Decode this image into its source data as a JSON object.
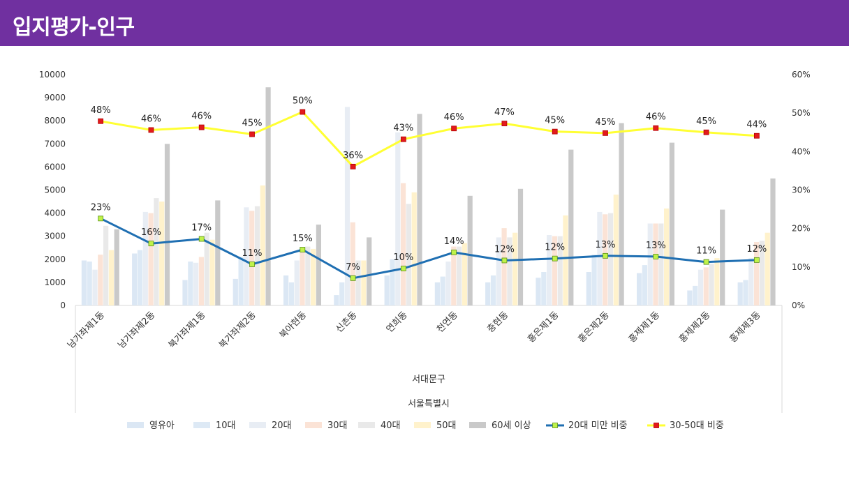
{
  "page": {
    "title": "입지평가-인구"
  },
  "colors": {
    "header_bg": "#7030a0",
    "infant": "#dbe7f4",
    "teens": "#dde9f5",
    "twenties": "#e8edf4",
    "thirties": "#fbe3d6",
    "forties": "#e9e9e9",
    "fifties": "#fff2cc",
    "sixty_plus": "#c9c9c9",
    "under20_line": "#1f6fb2",
    "under20_marker": "#bff24a",
    "age30_50_line": "#ffff33",
    "age30_50_marker": "#e31a1c"
  },
  "chart_data": {
    "type": "bar",
    "categories": [
      "남가좌제1동",
      "남가좌제2동",
      "북가좌제1동",
      "북가좌제2동",
      "북아현동",
      "신촌동",
      "연희동",
      "천연동",
      "충현동",
      "홍은제1동",
      "홍은제2동",
      "홍제제1동",
      "홍제제2동",
      "홍제제3동"
    ],
    "x_group_labels": [
      "서대문구",
      "서울특별시"
    ],
    "ylim": [
      0,
      10000
    ],
    "y_ticks": [
      "0",
      "1000",
      "2000",
      "3000",
      "4000",
      "5000",
      "6000",
      "7000",
      "8000",
      "9000",
      "10000"
    ],
    "y2lim": [
      0,
      0.6
    ],
    "y2_ticks": [
      "0%",
      "10%",
      "20%",
      "30%",
      "40%",
      "50%",
      "60%"
    ],
    "series": [
      {
        "name": "영유아",
        "type": "bar",
        "values": [
          1950,
          2250,
          1100,
          1150,
          1300,
          450,
          1300,
          1000,
          1000,
          1200,
          1450,
          1400,
          650,
          1000
        ]
      },
      {
        "name": "10대",
        "type": "bar",
        "values": [
          1900,
          2400,
          1900,
          2100,
          1000,
          1000,
          2000,
          1250,
          1300,
          1450,
          2200,
          1750,
          850,
          1100
        ]
      },
      {
        "name": "20대",
        "type": "bar",
        "values": [
          1550,
          4050,
          1850,
          4250,
          1950,
          8600,
          7500,
          1900,
          2950,
          3050,
          4050,
          3550,
          1550,
          2050
        ]
      },
      {
        "name": "30대",
        "type": "bar",
        "values": [
          2200,
          4000,
          2100,
          4100,
          2350,
          3600,
          5300,
          2550,
          3350,
          3000,
          3950,
          3550,
          1650,
          2750
        ]
      },
      {
        "name": "40대",
        "type": "bar",
        "values": [
          3450,
          4650,
          3150,
          4300,
          2550,
          1950,
          4400,
          2550,
          2950,
          3000,
          4000,
          3550,
          1800,
          2800
        ]
      },
      {
        "name": "50대",
        "type": "bar",
        "values": [
          2400,
          4500,
          2850,
          5200,
          2450,
          1950,
          4900,
          2700,
          3150,
          3900,
          4800,
          4200,
          2050,
          3150
        ]
      },
      {
        "name": "60세 이상",
        "type": "bar",
        "values": [
          3300,
          7000,
          4550,
          9450,
          3500,
          2950,
          8300,
          4750,
          5050,
          6750,
          7900,
          7050,
          4150,
          5500
        ]
      },
      {
        "name": "20대 미만 비중",
        "type": "line",
        "axis": "right",
        "values": [
          0.23,
          0.16,
          0.17,
          0.11,
          0.15,
          0.07,
          0.1,
          0.14,
          0.12,
          0.12,
          0.13,
          0.13,
          0.11,
          0.12
        ],
        "plot_values": [
          0.226,
          0.161,
          0.173,
          0.107,
          0.145,
          0.071,
          0.096,
          0.138,
          0.117,
          0.122,
          0.129,
          0.127,
          0.113,
          0.118
        ],
        "labels": [
          "23%",
          "16%",
          "17%",
          "11%",
          "15%",
          "7%",
          "10%",
          "14%",
          "12%",
          "12%",
          "13%",
          "13%",
          "11%",
          "12%"
        ]
      },
      {
        "name": "30-50대 비중",
        "type": "line",
        "axis": "right",
        "values": [
          0.48,
          0.46,
          0.46,
          0.45,
          0.5,
          0.36,
          0.43,
          0.46,
          0.47,
          0.45,
          0.45,
          0.46,
          0.45,
          0.44
        ],
        "plot_values": [
          0.479,
          0.456,
          0.463,
          0.445,
          0.503,
          0.361,
          0.432,
          0.46,
          0.473,
          0.452,
          0.448,
          0.461,
          0.45,
          0.441
        ],
        "labels": [
          "48%",
          "46%",
          "46%",
          "45%",
          "50%",
          "36%",
          "43%",
          "46%",
          "47%",
          "45%",
          "45%",
          "46%",
          "45%",
          "44%"
        ]
      }
    ],
    "legend": "bottom",
    "grid": false
  }
}
